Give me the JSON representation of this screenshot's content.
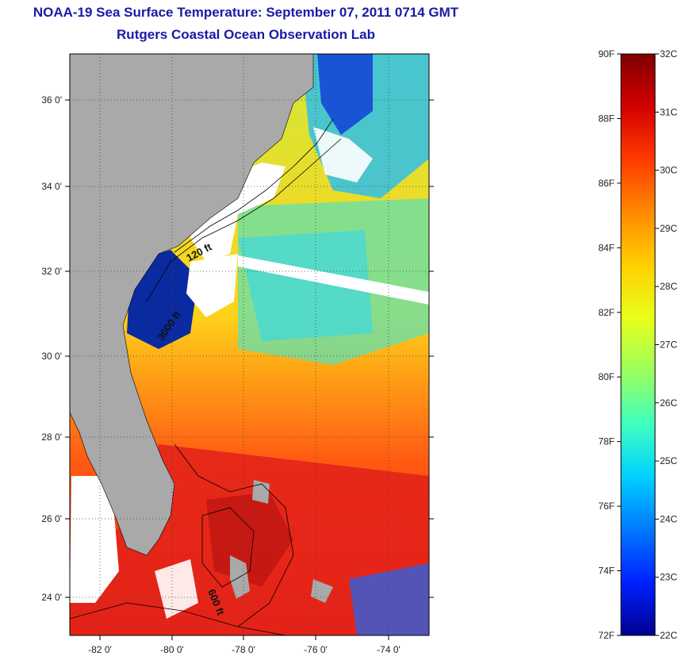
{
  "title": {
    "line1": "NOAA-19 Sea Surface Temperature:  September 07, 2011 0714 GMT",
    "line2": "Rutgers Coastal Ocean Observation Lab"
  },
  "map": {
    "lat_ticks": [
      "24 0'",
      "26 0'",
      "28 0'",
      "30 0'",
      "32 0'",
      "34 0'",
      "36 0'"
    ],
    "lon_ticks": [
      "-82 0'",
      "-80 0'",
      "-78 0'",
      "-76 0'",
      "-74 0'"
    ],
    "isobath_labels": [
      "120 ft",
      "3000 ft",
      "600 ft"
    ],
    "colors": {
      "land": "#a9a9a9",
      "cloud": "#ffffff"
    }
  },
  "colorbar": {
    "fahrenheit_ticks": [
      "90F",
      "88F",
      "86F",
      "84F",
      "82F",
      "80F",
      "78F",
      "76F",
      "74F",
      "72F"
    ],
    "celsius_ticks": [
      "32C",
      "31C",
      "30C",
      "29C",
      "28C",
      "27C",
      "26C",
      "25C",
      "24C",
      "23C",
      "22C"
    ],
    "gradient_stops": [
      "#7f0000",
      "#d40000",
      "#ff3b00",
      "#ff8a00",
      "#ffd000",
      "#e8ff1a",
      "#9bff5c",
      "#3fffbf",
      "#00d0ff",
      "#0078ff",
      "#0020ff",
      "#000090"
    ]
  }
}
